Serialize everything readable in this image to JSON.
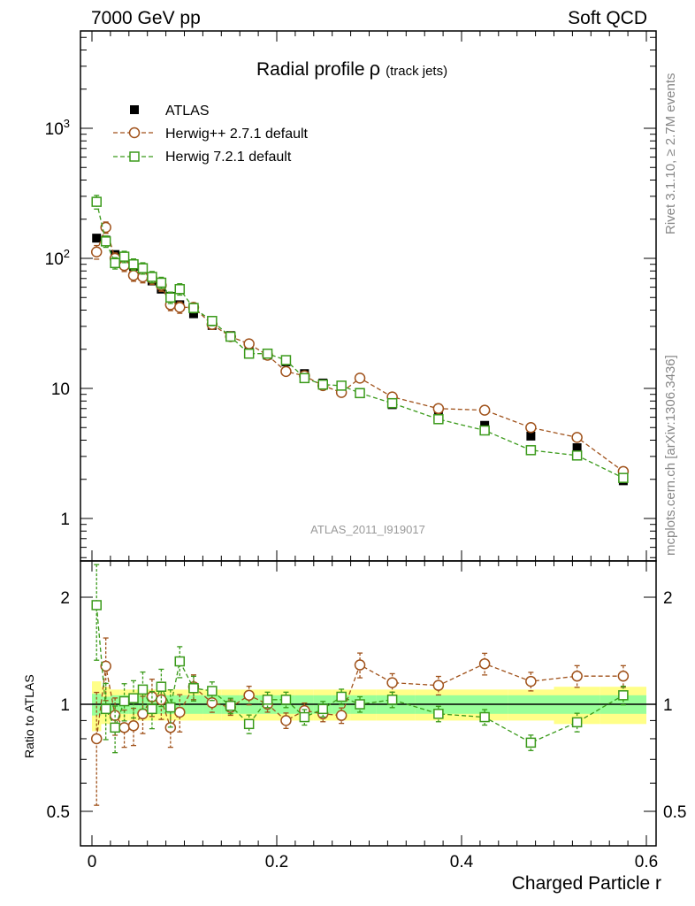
{
  "header": {
    "left": "7000 GeV pp",
    "right": "Soft QCD"
  },
  "side_text": {
    "rivet": "Rivet 3.1.10, ≥ 2.7M events",
    "mcplots": "mcplots.cern.ch [arXiv:1306.3436]"
  },
  "watermark": "ATLAS_2011_I919017",
  "title": {
    "main": "Radial profile",
    "symbol": "ρ",
    "suffix": "(track jets)"
  },
  "xlabel": "Charged Particle r",
  "ratio_ylabel": "Ratio to ATLAS",
  "legend": [
    {
      "label": "ATLAS",
      "color": "#000000",
      "marker": "square-filled"
    },
    {
      "label": "Herwig++ 2.7.1 default",
      "color": "#a0521b",
      "marker": "circle-open"
    },
    {
      "label": "Herwig 7.2.1 default",
      "color": "#3a9a1a",
      "marker": "square-open"
    }
  ],
  "colors": {
    "data": "#000000",
    "herwigpp": "#a0521b",
    "herwig7": "#3a9a1a",
    "band_inner": "#99ff99",
    "band_outer": "#ffff88"
  },
  "chart_data": [
    {
      "type": "scatter",
      "name": "main",
      "x_ticks": [
        "0",
        "0.2",
        "0.4",
        "0.6"
      ],
      "y_ticks": [
        "1",
        "10",
        "10²",
        "10³"
      ],
      "xlim": [
        -0.01,
        0.61
      ],
      "ylim_log": [
        0.49,
        5800
      ],
      "y_scale": "log",
      "x": [
        0.005,
        0.015,
        0.025,
        0.035,
        0.045,
        0.055,
        0.065,
        0.075,
        0.085,
        0.095,
        0.11,
        0.13,
        0.15,
        0.17,
        0.19,
        0.21,
        0.23,
        0.25,
        0.27,
        0.29,
        0.325,
        0.375,
        0.425,
        0.475,
        0.525,
        0.575
      ],
      "series": [
        {
          "name": "ATLAS",
          "values": [
            143,
            138,
            107,
            101,
            87,
            76,
            67,
            58,
            51,
            44,
            37.5,
            30.5,
            25.5,
            21,
            18,
            16,
            13,
            11,
            10,
            9.3,
            7.5,
            6.2,
            5.2,
            4.3,
            3.5,
            1.95
          ]
        },
        {
          "name": "Herwig++ 2.7.1 default",
          "values": [
            112,
            173,
            100,
            88,
            74,
            72,
            70,
            62,
            44,
            42,
            42,
            31,
            25,
            22,
            18,
            13.5,
            12.5,
            10.5,
            9.3,
            12,
            8.6,
            7,
            6.8,
            5,
            4.2,
            2.3
          ],
          "err": [
            0.12,
            0.1,
            0.1,
            0.1,
            0.1,
            0.1,
            0.1,
            0.1,
            0.1,
            0.1,
            0.08,
            0.08,
            0.06,
            0.06,
            0.06,
            0.06,
            0.06,
            0.06,
            0.07,
            0.06,
            0.05,
            0.05,
            0.05,
            0.05,
            0.05,
            0.05
          ]
        },
        {
          "name": "Herwig 7.2.1 default",
          "values": [
            272,
            135,
            92,
            103,
            90,
            84,
            72,
            65,
            50,
            58,
            41.5,
            33,
            25,
            18.5,
            18.5,
            16.5,
            12,
            10.7,
            10.5,
            9.2,
            7.7,
            5.8,
            4.75,
            3.35,
            3.05,
            2.05
          ],
          "err": [
            0.12,
            0.1,
            0.1,
            0.1,
            0.1,
            0.1,
            0.1,
            0.1,
            0.1,
            0.1,
            0.08,
            0.08,
            0.06,
            0.06,
            0.06,
            0.06,
            0.06,
            0.06,
            0.07,
            0.06,
            0.05,
            0.05,
            0.05,
            0.05,
            0.05,
            0.05
          ]
        }
      ]
    },
    {
      "type": "scatter",
      "name": "ratio",
      "ylabel": "Ratio to ATLAS",
      "y_ticks": [
        "0.5",
        "1",
        "2"
      ],
      "ylim_log": [
        0.44,
        2.45
      ],
      "y_scale": "log",
      "x": [
        0.005,
        0.015,
        0.025,
        0.035,
        0.045,
        0.055,
        0.065,
        0.075,
        0.085,
        0.095,
        0.11,
        0.13,
        0.15,
        0.17,
        0.19,
        0.21,
        0.23,
        0.25,
        0.27,
        0.29,
        0.325,
        0.375,
        0.425,
        0.475,
        0.525,
        0.575
      ],
      "band_inner": [
        0.07,
        0.05,
        0.06,
        0.06,
        0.06,
        0.06,
        0.06,
        0.06,
        0.06,
        0.06,
        0.06,
        0.06,
        0.06,
        0.06,
        0.06,
        0.06,
        0.06,
        0.06,
        0.06,
        0.06,
        0.06,
        0.06,
        0.06,
        0.06,
        0.06,
        0.06
      ],
      "band_outer": [
        0.16,
        0.12,
        0.1,
        0.1,
        0.1,
        0.1,
        0.1,
        0.1,
        0.1,
        0.1,
        0.1,
        0.1,
        0.1,
        0.1,
        0.1,
        0.1,
        0.1,
        0.1,
        0.1,
        0.1,
        0.1,
        0.1,
        0.1,
        0.1,
        0.12,
        0.12
      ],
      "series": [
        {
          "name": "Herwig++ 2.7.1 default",
          "values": [
            0.8,
            1.28,
            0.93,
            0.86,
            0.87,
            0.94,
            1.05,
            1.03,
            0.86,
            0.95,
            1.12,
            1.01,
            0.98,
            1.06,
            1.0,
            0.9,
            0.96,
            0.94,
            0.93,
            1.29,
            1.15,
            1.13,
            1.3,
            1.16,
            1.2,
            1.2
          ],
          "err": [
            0.35,
            0.2,
            0.12,
            0.12,
            0.12,
            0.12,
            0.12,
            0.12,
            0.12,
            0.12,
            0.08,
            0.06,
            0.05,
            0.06,
            0.05,
            0.05,
            0.05,
            0.05,
            0.05,
            0.08,
            0.06,
            0.06,
            0.07,
            0.06,
            0.07,
            0.07
          ]
        },
        {
          "name": "Herwig 7.2.1 default",
          "values": [
            1.9,
            0.97,
            0.86,
            1.02,
            1.04,
            1.1,
            0.97,
            1.12,
            0.98,
            1.32,
            1.11,
            1.09,
            0.99,
            0.88,
            1.03,
            1.03,
            0.92,
            0.97,
            1.05,
            1.0,
            1.03,
            0.94,
            0.92,
            0.78,
            0.89,
            1.06
          ],
          "err": [
            0.3,
            0.18,
            0.15,
            0.12,
            0.12,
            0.12,
            0.12,
            0.12,
            0.12,
            0.1,
            0.08,
            0.06,
            0.05,
            0.06,
            0.05,
            0.05,
            0.05,
            0.05,
            0.05,
            0.05,
            0.05,
            0.05,
            0.05,
            0.05,
            0.06,
            0.06
          ]
        }
      ]
    }
  ]
}
